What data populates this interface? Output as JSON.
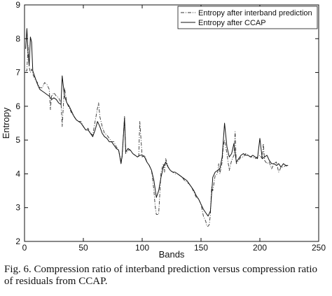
{
  "chart_data": {
    "type": "line",
    "title": "",
    "xlabel": "Bands",
    "ylabel": "Entropy",
    "xlim": [
      0,
      250
    ],
    "ylim": [
      2,
      9
    ],
    "x_ticks": [
      "0",
      "50",
      "100",
      "150",
      "200",
      "250"
    ],
    "y_ticks": [
      "2",
      "3",
      "4",
      "5",
      "6",
      "7",
      "8",
      "9"
    ],
    "grid": false,
    "legend_position": "top-right",
    "series": [
      {
        "name": "Entropy after interband prediction",
        "style": "dash-dot",
        "color": "#333333",
        "x": [
          1,
          2,
          3,
          4,
          5,
          6,
          7,
          9,
          11,
          13,
          15,
          17,
          19,
          21,
          22,
          23,
          25,
          27,
          29,
          31,
          32,
          33,
          34,
          36,
          38,
          40,
          42,
          44,
          46,
          48,
          50,
          52,
          54,
          56,
          58,
          60,
          62,
          63,
          64,
          66,
          68,
          70,
          72,
          74,
          76,
          78,
          80,
          82,
          83,
          85,
          86,
          88,
          90,
          92,
          94,
          96,
          97,
          98,
          100,
          102,
          104,
          106,
          108,
          110,
          111,
          112,
          114,
          116,
          118,
          119,
          120,
          122,
          124,
          126,
          128,
          130,
          132,
          134,
          136,
          138,
          140,
          142,
          144,
          146,
          148,
          150,
          152,
          154,
          155,
          156,
          157,
          158,
          159,
          160,
          162,
          164,
          165,
          166,
          168,
          169,
          170,
          171,
          172,
          174,
          176,
          178,
          179,
          180,
          182,
          184,
          186,
          188,
          190,
          192,
          194,
          196,
          198,
          200,
          202,
          203,
          204,
          206,
          208,
          210,
          212,
          214,
          216,
          218,
          220,
          222,
          224
        ],
        "y": [
          7.05,
          7.05,
          7.8,
          7.15,
          7.0,
          7.1,
          6.95,
          6.8,
          6.7,
          6.55,
          6.55,
          6.7,
          6.65,
          6.5,
          5.9,
          6.3,
          6.4,
          6.3,
          6.25,
          6.1,
          5.4,
          6.0,
          6.55,
          6.1,
          5.95,
          5.8,
          5.7,
          5.6,
          5.55,
          5.55,
          5.4,
          5.3,
          5.35,
          5.2,
          5.15,
          5.55,
          5.95,
          6.1,
          5.7,
          5.4,
          5.2,
          5.15,
          5.05,
          4.95,
          4.95,
          4.8,
          4.7,
          4.35,
          4.5,
          5.7,
          4.6,
          4.7,
          4.7,
          4.6,
          4.55,
          4.5,
          4.5,
          5.55,
          4.5,
          4.55,
          4.35,
          4.25,
          4.1,
          3.5,
          3.05,
          2.8,
          2.8,
          4.05,
          4.3,
          4.05,
          4.45,
          4.2,
          4.1,
          4.05,
          4.0,
          4.0,
          3.95,
          3.9,
          3.8,
          3.75,
          3.7,
          3.6,
          3.45,
          3.3,
          3.25,
          3.1,
          2.75,
          2.6,
          2.45,
          2.45,
          2.5,
          2.8,
          3.6,
          3.5,
          3.95,
          4.0,
          4.3,
          4.0,
          4.35,
          4.85,
          5.0,
          4.8,
          4.6,
          4.1,
          4.4,
          4.55,
          5.25,
          4.3,
          4.4,
          4.5,
          4.5,
          4.6,
          4.55,
          4.5,
          4.5,
          4.45,
          4.5,
          4.55,
          4.45,
          4.9,
          4.4,
          4.3,
          4.35,
          4.15,
          4.3,
          4.35,
          4.05,
          4.2,
          4.2,
          4.25,
          4.2
        ]
      },
      {
        "name": "Entropy after CCAP",
        "style": "solid",
        "color": "#111111",
        "x": [
          1,
          2,
          3,
          4,
          5,
          6,
          7,
          9,
          11,
          13,
          15,
          17,
          19,
          21,
          23,
          25,
          27,
          29,
          31,
          32,
          33,
          34,
          36,
          38,
          40,
          42,
          44,
          46,
          48,
          50,
          52,
          54,
          56,
          58,
          60,
          62,
          64,
          66,
          68,
          70,
          72,
          74,
          76,
          78,
          80,
          82,
          83,
          85,
          86,
          88,
          90,
          92,
          94,
          96,
          98,
          100,
          102,
          104,
          106,
          108,
          110,
          112,
          114,
          116,
          118,
          120,
          122,
          124,
          126,
          128,
          130,
          132,
          134,
          136,
          138,
          140,
          142,
          144,
          146,
          148,
          150,
          152,
          154,
          156,
          158,
          160,
          162,
          164,
          166,
          168,
          170,
          172,
          174,
          176,
          178,
          180,
          182,
          184,
          186,
          188,
          190,
          192,
          194,
          196,
          198,
          200,
          202,
          204,
          206,
          208,
          210,
          212,
          214,
          216,
          218,
          220,
          222,
          224
        ],
        "y": [
          7.7,
          8.3,
          7.6,
          7.2,
          8.05,
          7.9,
          7.05,
          6.85,
          6.65,
          6.5,
          6.45,
          6.4,
          6.35,
          6.3,
          6.2,
          6.25,
          6.2,
          6.1,
          6.05,
          6.9,
          6.6,
          6.3,
          6.1,
          6.0,
          5.85,
          5.7,
          5.6,
          5.55,
          5.5,
          5.4,
          5.3,
          5.3,
          5.2,
          5.1,
          5.3,
          5.55,
          5.4,
          5.2,
          5.1,
          5.05,
          4.95,
          4.95,
          4.85,
          4.75,
          4.7,
          4.3,
          4.55,
          5.65,
          4.65,
          4.75,
          4.7,
          4.6,
          4.55,
          4.5,
          4.55,
          4.55,
          4.5,
          4.35,
          4.25,
          4.1,
          3.8,
          3.3,
          3.5,
          3.9,
          4.2,
          4.35,
          4.2,
          4.1,
          4.05,
          4.05,
          4.0,
          3.95,
          3.9,
          3.85,
          3.8,
          3.7,
          3.6,
          3.5,
          3.35,
          3.25,
          3.1,
          2.95,
          2.85,
          2.75,
          2.9,
          3.9,
          4.05,
          4.1,
          4.15,
          4.5,
          5.5,
          4.8,
          4.5,
          4.6,
          4.9,
          4.35,
          4.45,
          4.55,
          4.6,
          4.55,
          4.55,
          4.5,
          4.55,
          4.5,
          4.45,
          5.05,
          4.45,
          4.5,
          4.55,
          4.4,
          4.3,
          4.3,
          4.25,
          4.3,
          4.2,
          4.3,
          4.25,
          4.25
        ]
      }
    ]
  },
  "caption": "Fig. 6.    Compression ratio of interband prediction versus compression ratio of residuals from CCAP."
}
